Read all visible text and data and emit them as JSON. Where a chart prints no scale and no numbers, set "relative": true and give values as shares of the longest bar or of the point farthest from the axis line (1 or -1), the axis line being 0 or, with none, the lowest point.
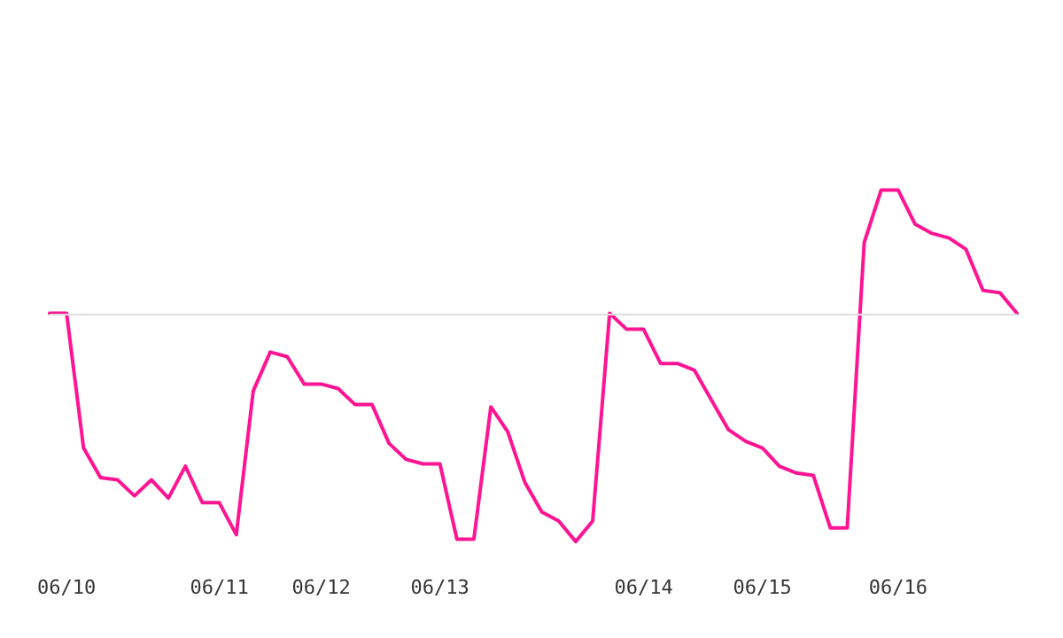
{
  "chart_data": {
    "type": "line",
    "relative": true,
    "grid": false,
    "marker": "none",
    "line_style": "solid",
    "categories": [
      null,
      "06/10",
      null,
      null,
      null,
      null,
      null,
      null,
      null,
      null,
      "06/11",
      null,
      null,
      null,
      null,
      null,
      "06/12",
      null,
      null,
      null,
      null,
      null,
      null,
      "06/13",
      null,
      null,
      null,
      null,
      null,
      null,
      null,
      null,
      null,
      null,
      null,
      "06/14",
      null,
      null,
      null,
      null,
      null,
      null,
      "06/15",
      null,
      null,
      null,
      null,
      null,
      null,
      null,
      "06/16",
      null,
      null,
      null,
      null,
      null,
      null,
      null
    ],
    "series": [
      {
        "color": "#ff1493",
        "values": [
          0,
          0,
          -0.59,
          -0.72,
          -0.73,
          -0.8,
          -0.73,
          -0.81,
          -0.67,
          -0.83,
          -0.83,
          -0.97,
          -0.34,
          -0.17,
          -0.19,
          -0.31,
          -0.31,
          -0.33,
          -0.4,
          -0.4,
          -0.57,
          -0.64,
          -0.66,
          -0.66,
          -0.99,
          -0.99,
          -0.41,
          -0.52,
          -0.74,
          -0.87,
          -0.91,
          -1,
          -0.91,
          0,
          -0.07,
          -0.07,
          -0.22,
          -0.22,
          -0.25,
          -0.38,
          -0.51,
          -0.56,
          -0.59,
          -0.67,
          -0.7,
          -0.71,
          -0.94,
          -0.94,
          0.31,
          0.54,
          0.54,
          0.39,
          0.35,
          0.33,
          0.28,
          0.1,
          0.09,
          0
        ]
      }
    ]
  }
}
